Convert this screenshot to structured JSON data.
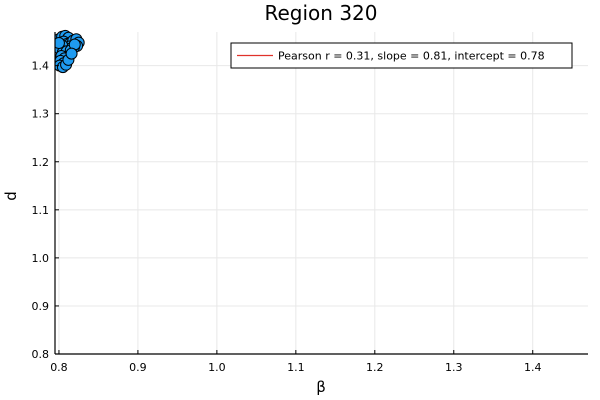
{
  "chart_data": {
    "type": "scatter",
    "title": "Region 320",
    "xlabel": "β",
    "ylabel": "d",
    "xlim": [
      0.795,
      1.47
    ],
    "ylim": [
      0.8,
      1.47
    ],
    "xticks": [
      0.8,
      0.9,
      1.0,
      1.1,
      1.2,
      1.3,
      1.4
    ],
    "xtick_labels": [
      "0.8",
      "0.9",
      "1.0",
      "1.1",
      "1.2",
      "1.3",
      "1.4"
    ],
    "yticks": [
      0.8,
      0.9,
      1.0,
      1.1,
      1.2,
      1.3,
      1.4
    ],
    "ytick_labels": [
      "0.8",
      "0.9",
      "1.0",
      "1.1",
      "1.2",
      "1.3",
      "1.4"
    ],
    "grid": true,
    "legend_position": "top-right",
    "colors": {
      "points": "#1f9bf0",
      "point_outline": "#000000",
      "fit_line": "#e0322b",
      "axis": "#000000",
      "grid": "#e8e8e8"
    },
    "series": [
      {
        "name": "points",
        "kind": "scatter",
        "points": [
          [
            0.8,
            1.455
          ],
          [
            0.804,
            1.46
          ],
          [
            0.808,
            1.462
          ],
          [
            0.812,
            1.458
          ],
          [
            0.806,
            1.45
          ],
          [
            0.81,
            1.445
          ],
          [
            0.815,
            1.448
          ],
          [
            0.818,
            1.452
          ],
          [
            0.822,
            1.455
          ],
          [
            0.825,
            1.448
          ],
          [
            0.823,
            1.441
          ],
          [
            0.819,
            1.438
          ],
          [
            0.814,
            1.44
          ],
          [
            0.809,
            1.436
          ],
          [
            0.804,
            1.442
          ],
          [
            0.801,
            1.435
          ],
          [
            0.805,
            1.428
          ],
          [
            0.81,
            1.43
          ],
          [
            0.815,
            1.432
          ],
          [
            0.82,
            1.444
          ],
          [
            0.803,
            1.42
          ],
          [
            0.807,
            1.415
          ],
          [
            0.802,
            1.41
          ],
          [
            0.806,
            1.405
          ],
          [
            0.801,
            1.4
          ],
          [
            0.805,
            1.397
          ],
          [
            0.809,
            1.402
          ],
          [
            0.812,
            1.412
          ],
          [
            0.816,
            1.425
          ],
          [
            0.8,
            1.447
          ]
        ]
      },
      {
        "name": "Pearson r = 0.31, slope = 0.81, intercept = 0.78",
        "kind": "line",
        "slope": 0.81,
        "intercept": 0.78,
        "x_range": [
          0.8,
          0.826
        ]
      }
    ],
    "legend": {
      "label": "Pearson r = 0.31, slope = 0.81, intercept = 0.78"
    }
  }
}
